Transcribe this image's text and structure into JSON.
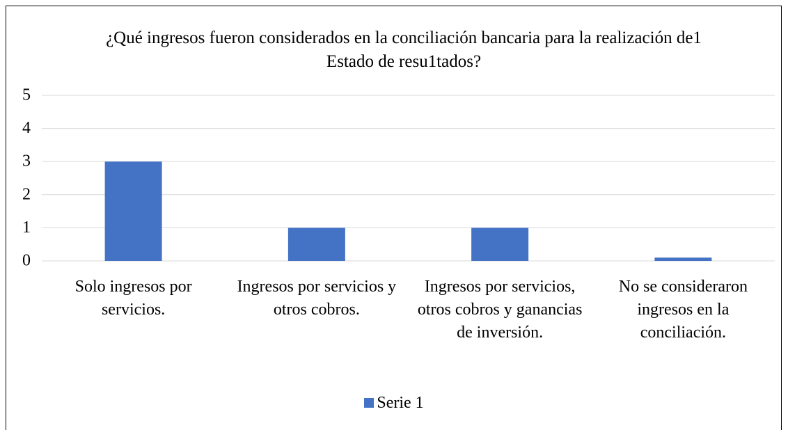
{
  "chart_data": {
    "type": "bar",
    "title": "¿Qué ingresos fueron considerados en la conciliación bancaria para la realización de1 Estado de resu1tados?",
    "categories": [
      "Solo ingresos por servicios.",
      "Ingresos por servicios y otros cobros.",
      "Ingresos por servicios, otros cobros y ganancias de inversión.",
      "No se consideraron ingresos en la conciliación."
    ],
    "series": [
      {
        "name": "Serie 1",
        "color": "#4472c4",
        "values": [
          3,
          1,
          1,
          0.1
        ]
      }
    ],
    "ylim": [
      0,
      5
    ],
    "yticks": [
      0,
      1,
      2,
      3,
      4,
      5
    ],
    "grid": true,
    "legend": "bottom"
  }
}
